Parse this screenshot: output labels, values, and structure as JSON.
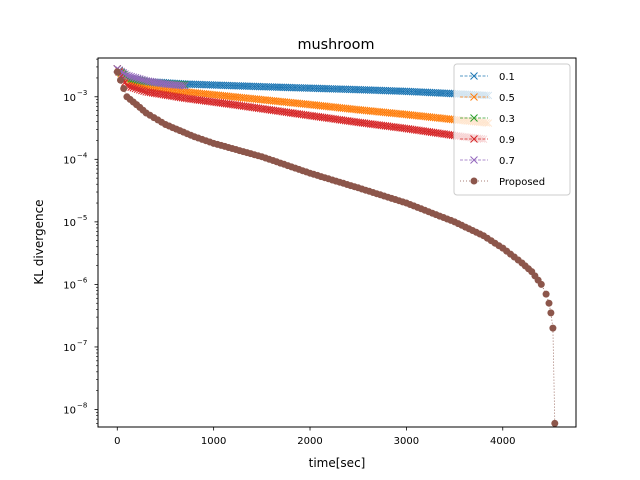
{
  "chart_data": {
    "type": "line",
    "title": "mushroom",
    "xlabel": "time[sec]",
    "ylabel": "KL divergence",
    "xlim": [
      -200,
      4760
    ],
    "ylim_log10": [
      -8.28,
      -2.38
    ],
    "y_scale": "log",
    "x_ticks": [
      0,
      1000,
      2000,
      3000,
      4000
    ],
    "x_tick_labels": [
      "0",
      "1000",
      "2000",
      "3000",
      "4000"
    ],
    "y_tick_exponents": [
      -8,
      -7,
      -6,
      -5,
      -4,
      -3
    ],
    "y_tick_labels": [
      "10",
      "10",
      "10",
      "10",
      "10",
      "10"
    ],
    "y_tick_label_exponents": [
      "−8",
      "−7",
      "−6",
      "−5",
      "−4",
      "−3"
    ],
    "grid": false,
    "legend_position": "top-right",
    "series": [
      {
        "name": "0.1",
        "color": "#1f77b4",
        "marker": "x",
        "linestyle": "dashed",
        "points": [
          [
            0,
            0.0028
          ],
          [
            100,
            0.002
          ],
          [
            300,
            0.00175
          ],
          [
            700,
            0.0016
          ],
          [
            1500,
            0.00145
          ],
          [
            2500,
            0.0013
          ],
          [
            3000,
            0.00122
          ],
          [
            3500,
            0.00112
          ],
          [
            3850,
            0.00105
          ]
        ]
      },
      {
        "name": "0.5",
        "color": "#ff7f0e",
        "marker": "x",
        "linestyle": "dashed",
        "points": [
          [
            0,
            0.0028
          ],
          [
            100,
            0.0018
          ],
          [
            300,
            0.00145
          ],
          [
            700,
            0.0012
          ],
          [
            1200,
            0.001
          ],
          [
            2000,
            0.00075
          ],
          [
            2500,
            0.00062
          ],
          [
            3000,
            0.00052
          ],
          [
            3500,
            0.00043
          ],
          [
            3850,
            0.00038
          ]
        ]
      },
      {
        "name": "0.3",
        "color": "#2ca02c",
        "marker": "x",
        "linestyle": "dashed",
        "points": [
          [
            0,
            0.0028
          ],
          [
            100,
            0.002
          ],
          [
            300,
            0.00175
          ],
          [
            500,
            0.00162
          ],
          [
            700,
            0.00155
          ]
        ]
      },
      {
        "name": "0.9",
        "color": "#d62728",
        "marker": "x",
        "linestyle": "dashed",
        "points": [
          [
            0,
            0.0028
          ],
          [
            100,
            0.0015
          ],
          [
            300,
            0.0012
          ],
          [
            700,
            0.00095
          ],
          [
            1200,
            0.00075
          ],
          [
            2000,
            0.0005
          ],
          [
            2500,
            0.00039
          ],
          [
            3000,
            0.00031
          ],
          [
            3500,
            0.00024
          ],
          [
            3800,
            0.00021
          ]
        ]
      },
      {
        "name": "0.7",
        "color": "#9467bd",
        "marker": "x",
        "linestyle": "dashed",
        "points": [
          [
            0,
            0.0028
          ],
          [
            100,
            0.0022
          ],
          [
            300,
            0.0018
          ],
          [
            500,
            0.0016
          ],
          [
            700,
            0.0015
          ]
        ]
      },
      {
        "name": "Proposed",
        "color": "#8c564b",
        "marker": "o",
        "linestyle": "dotted",
        "points": [
          [
            0,
            0.0025
          ],
          [
            100,
            0.001
          ],
          [
            200,
            0.00075
          ],
          [
            300,
            0.00055
          ],
          [
            500,
            0.00036
          ],
          [
            800,
            0.00023
          ],
          [
            1000,
            0.00018
          ],
          [
            1500,
            0.00011
          ],
          [
            2000,
            6e-05
          ],
          [
            2500,
            3.5e-05
          ],
          [
            3000,
            2e-05
          ],
          [
            3500,
            1e-05
          ],
          [
            3800,
            6e-06
          ],
          [
            4000,
            3.8e-06
          ],
          [
            4200,
            2.2e-06
          ],
          [
            4300,
            1.6e-06
          ],
          [
            4400,
            1e-06
          ],
          [
            4450,
            7e-07
          ],
          [
            4480,
            5e-07
          ],
          [
            4500,
            3.5e-07
          ],
          [
            4520,
            2e-07
          ],
          [
            4540,
            6e-09
          ]
        ]
      }
    ]
  }
}
